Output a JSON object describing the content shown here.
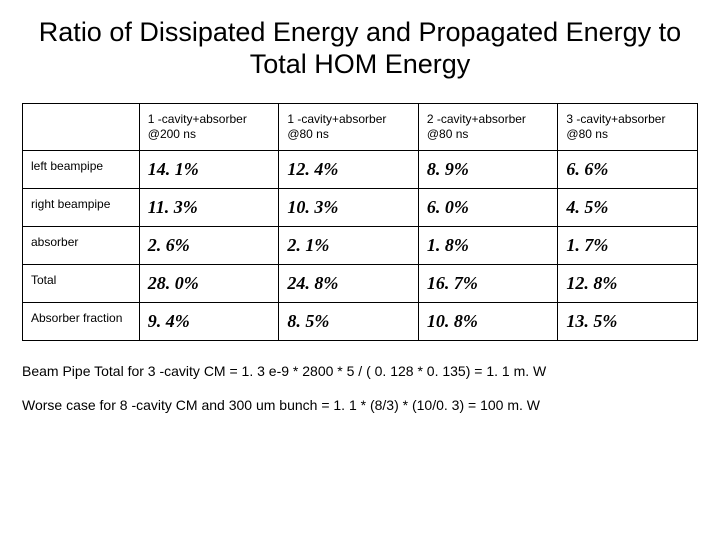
{
  "title": "Ratio of Dissipated Energy and Propagated Energy to Total HOM Energy",
  "table": {
    "columns": [
      "1 -cavity+absorber @200 ns",
      "1 -cavity+absorber @80 ns",
      "2 -cavity+absorber @80 ns",
      "3 -cavity+absorber @80 ns"
    ],
    "rows": [
      {
        "label": "left beampipe",
        "values": [
          "14. 1%",
          "12. 4%",
          "8. 9%",
          "6. 6%"
        ]
      },
      {
        "label": "right beampipe",
        "values": [
          "11. 3%",
          "10. 3%",
          "6. 0%",
          "4. 5%"
        ]
      },
      {
        "label": "absorber",
        "values": [
          "2. 6%",
          "2. 1%",
          "1. 8%",
          "1. 7%"
        ]
      },
      {
        "label": "Total",
        "values": [
          "28. 0%",
          "24. 8%",
          "16. 7%",
          "12. 8%"
        ]
      },
      {
        "label": "Absorber fraction",
        "values": [
          "9. 4%",
          "8. 5%",
          "10. 8%",
          "13. 5%"
        ]
      }
    ]
  },
  "footnotes": {
    "line1": "Beam Pipe Total for 3 -cavity CM = 1. 3 e-9 * 2800 * 5 / ( 0. 128 * 0. 135)  = 1. 1 m. W",
    "line2": "Worse case for 8 -cavity CM and 300 um bunch = 1. 1 * (8/3) * (10/0. 3) = 100 m. W"
  }
}
